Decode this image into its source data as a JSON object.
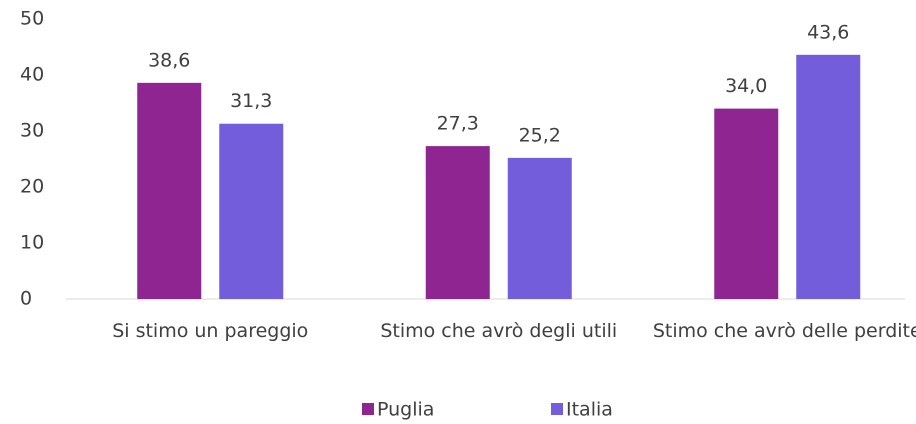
{
  "chart_data": {
    "type": "bar",
    "categories": [
      "Si stimo un pareggio",
      "Stimo che avrò degli utili",
      "Stimo che avrò delle perdite"
    ],
    "series": [
      {
        "name": "Puglia",
        "color": "#8e2590",
        "values": [
          38.6,
          27.3,
          34.0
        ],
        "value_labels": [
          "38,6",
          "27,3",
          "34,0"
        ]
      },
      {
        "name": "Italia",
        "color": "#735ddb",
        "values": [
          31.3,
          25.2,
          43.6
        ],
        "value_labels": [
          "31,3",
          "25,2",
          "43,6"
        ]
      }
    ],
    "ylim": [
      0,
      50
    ],
    "yticks": [
      0,
      10,
      20,
      30,
      40,
      50
    ],
    "grid": false,
    "legend": "bottom"
  }
}
